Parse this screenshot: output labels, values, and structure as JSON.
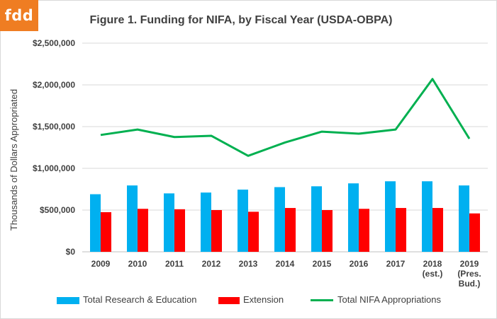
{
  "logo": {
    "text": "fdd"
  },
  "chart_data": {
    "type": "bar",
    "title": "Figure 1. Funding for NIFA, by Fiscal Year (USDA-OBPA)",
    "ylabel": "Thousands of Dollars Appropriated",
    "xlabel": "",
    "ylim": [
      0,
      2500000
    ],
    "yticks": [
      0,
      500000,
      1000000,
      1500000,
      2000000,
      2500000
    ],
    "ytick_labels": [
      "$0",
      "$500,000",
      "$1,000,000",
      "$1,500,000",
      "$2,000,000",
      "$2,500,000"
    ],
    "categories": [
      [
        "2009"
      ],
      [
        "2010"
      ],
      [
        "2011"
      ],
      [
        "2012"
      ],
      [
        "2013"
      ],
      [
        "2014"
      ],
      [
        "2015"
      ],
      [
        "2016"
      ],
      [
        "2017"
      ],
      [
        "2018",
        "(est.)"
      ],
      [
        "2019",
        "(Pres.",
        "Bud.)"
      ]
    ],
    "grid": true,
    "legend_position": "bottom",
    "series": [
      {
        "name": "Total Research & Education",
        "kind": "bar",
        "color": "#00b0f0",
        "values": [
          690000,
          795000,
          700000,
          710000,
          745000,
          775000,
          785000,
          820000,
          845000,
          845000,
          795000
        ]
      },
      {
        "name": "Extension",
        "kind": "bar",
        "color": "#ff0000",
        "values": [
          475000,
          515000,
          510000,
          500000,
          480000,
          525000,
          500000,
          515000,
          525000,
          525000,
          460000
        ]
      },
      {
        "name": "Total NIFA Appropriations",
        "kind": "line",
        "color": "#00b050",
        "values": [
          1400000,
          1465000,
          1375000,
          1390000,
          1150000,
          1310000,
          1440000,
          1415000,
          1465000,
          2070000,
          1355000
        ]
      }
    ]
  }
}
